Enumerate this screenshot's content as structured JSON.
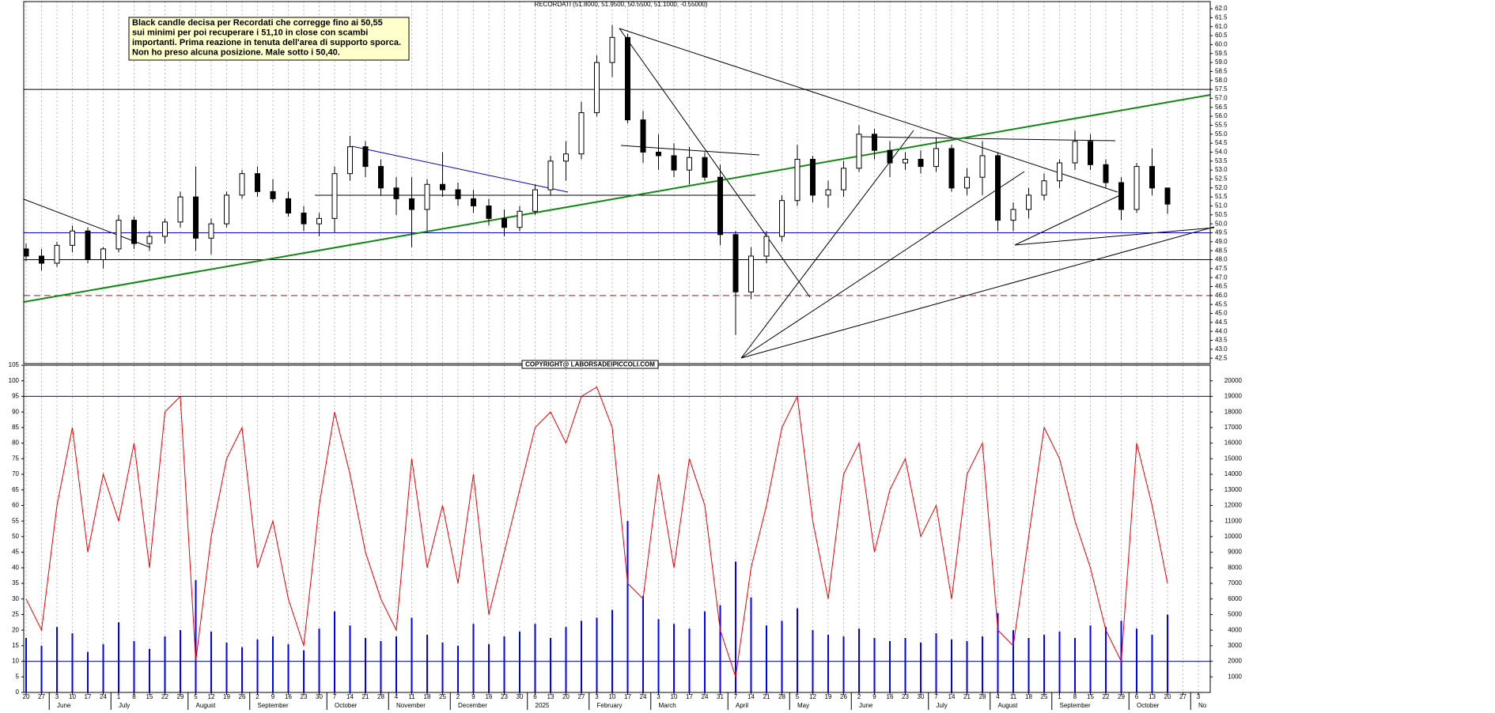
{
  "chart_data": {
    "type": "candlestick",
    "title": "RECORDATI (51.8000, 51.9500, 50.5500, 51.1000, -0.55000)",
    "annotation": [
      "Black candle decisa per Recordati che corregge fino ai 50,55",
      "sui minimi per poi recuperare i 51,10 in close con scambi",
      "importanti. Prima reazione in tenuta dell'area di supporto sporca.",
      "Non ho preso alcuna posizione. Male sotto i 50,40."
    ],
    "copyright": "COPYRIGHT@ LABORSADEIPICCOLI.COM",
    "categories": [
      "20",
      "27",
      "3",
      "10",
      "17",
      "24",
      "1",
      "8",
      "15",
      "22",
      "29",
      "5",
      "12",
      "19",
      "26",
      "2",
      "9",
      "16",
      "23",
      "30",
      "7",
      "14",
      "21",
      "28",
      "4",
      "11",
      "18",
      "25",
      "2",
      "9",
      "16",
      "23",
      "30",
      "6",
      "13",
      "20",
      "27",
      "3",
      "10",
      "17",
      "24",
      "3",
      "10",
      "17",
      "24",
      "31",
      "7",
      "14",
      "21",
      "28",
      "5",
      "12",
      "19",
      "26",
      "2",
      "9",
      "16",
      "23",
      "30",
      "7",
      "14",
      "21",
      "28",
      "4",
      "11",
      "18",
      "25",
      "1",
      "8",
      "15",
      "22",
      "29",
      "6",
      "13",
      "20",
      "27",
      "3"
    ],
    "month_labels": [
      null,
      null,
      "June",
      null,
      null,
      null,
      "July",
      null,
      null,
      null,
      null,
      "August",
      null,
      null,
      null,
      "September",
      null,
      null,
      null,
      null,
      "October",
      null,
      null,
      null,
      "November",
      null,
      null,
      null,
      "December",
      null,
      null,
      null,
      null,
      "2025",
      null,
      null,
      null,
      "February",
      null,
      null,
      null,
      "March",
      null,
      null,
      null,
      null,
      "April",
      null,
      null,
      null,
      "May",
      null,
      null,
      null,
      "June",
      null,
      null,
      null,
      null,
      "July",
      null,
      null,
      null,
      "August",
      null,
      null,
      null,
      "September",
      null,
      null,
      null,
      null,
      "October",
      null,
      null,
      null,
      "No"
    ],
    "open": [
      48.6,
      48.2,
      47.8,
      48.8,
      49.6,
      48.0,
      48.6,
      50.2,
      48.9,
      49.3,
      50.1,
      51.5,
      49.2,
      50.0,
      51.6,
      52.8,
      51.8,
      51.4,
      50.6,
      50.0,
      50.3,
      52.8,
      54.3,
      53.2,
      52.0,
      51.4,
      50.8,
      52.2,
      51.9,
      51.4,
      51.0,
      50.3,
      49.8,
      50.7,
      51.9,
      53.5,
      53.9,
      56.2,
      59.0,
      60.4,
      55.8,
      54.0,
      53.8,
      53.0,
      53.7,
      52.6,
      49.4,
      46.2,
      48.2,
      49.3,
      51.3,
      53.6,
      51.6,
      51.9,
      53.1,
      55.0,
      54.1,
      53.4,
      53.6,
      53.2,
      54.2,
      52.0,
      52.6,
      53.8,
      50.2,
      50.8,
      51.6,
      52.4,
      53.4,
      54.6,
      53.3,
      52.3,
      50.8,
      53.2,
      52.0,
      null,
      null
    ],
    "high": [
      48.9,
      48.6,
      49.0,
      49.9,
      49.8,
      48.7,
      50.5,
      50.4,
      49.6,
      50.3,
      51.8,
      53.2,
      50.3,
      51.8,
      53.0,
      53.2,
      52.5,
      51.8,
      51.0,
      50.6,
      53.2,
      54.9,
      54.6,
      53.6,
      52.6,
      52.6,
      52.5,
      54.0,
      52.3,
      51.9,
      51.4,
      50.8,
      51.0,
      52.2,
      53.8,
      54.6,
      56.8,
      59.4,
      61.1,
      60.6,
      56.3,
      55.0,
      54.5,
      54.3,
      54.0,
      53.3,
      49.6,
      48.7,
      49.6,
      51.6,
      54.4,
      53.8,
      52.4,
      53.5,
      55.5,
      55.3,
      54.6,
      54.0,
      54.1,
      54.8,
      54.4,
      53.1,
      54.6,
      54.0,
      51.2,
      52.0,
      52.8,
      53.6,
      55.2,
      55.0,
      53.6,
      52.6,
      53.4,
      54.2,
      51.95,
      null,
      null
    ],
    "low": [
      47.9,
      47.4,
      47.6,
      48.4,
      47.8,
      47.5,
      48.4,
      48.6,
      48.5,
      48.9,
      49.8,
      48.5,
      48.3,
      49.8,
      51.4,
      51.5,
      51.2,
      50.4,
      49.6,
      49.3,
      49.5,
      52.4,
      52.6,
      51.6,
      50.5,
      48.7,
      49.6,
      51.5,
      51.0,
      50.6,
      49.9,
      49.3,
      49.6,
      50.5,
      51.6,
      52.4,
      53.6,
      56.0,
      58.2,
      55.6,
      53.4,
      53.0,
      52.6,
      52.2,
      52.4,
      48.8,
      43.8,
      45.8,
      47.8,
      49.0,
      51.0,
      51.2,
      50.9,
      51.5,
      52.9,
      53.6,
      52.6,
      53.0,
      52.8,
      52.9,
      51.8,
      51.6,
      51.6,
      49.6,
      49.6,
      50.3,
      51.3,
      52.0,
      53.0,
      53.0,
      52.0,
      50.2,
      50.6,
      51.6,
      50.55,
      null,
      null
    ],
    "close": [
      48.2,
      47.8,
      48.8,
      49.6,
      48.0,
      48.6,
      50.2,
      48.9,
      49.3,
      50.1,
      51.5,
      49.2,
      50.0,
      51.6,
      52.8,
      51.8,
      51.4,
      50.6,
      50.0,
      50.3,
      52.8,
      54.3,
      53.2,
      52.0,
      51.4,
      50.8,
      52.2,
      51.9,
      51.4,
      51.0,
      50.3,
      49.8,
      50.7,
      51.9,
      53.5,
      53.9,
      56.2,
      59.0,
      60.4,
      55.8,
      54.0,
      53.8,
      53.0,
      53.7,
      52.6,
      49.4,
      46.2,
      48.2,
      49.3,
      51.3,
      53.6,
      51.6,
      51.9,
      53.1,
      55.0,
      54.1,
      53.4,
      53.6,
      53.2,
      54.2,
      52.0,
      52.6,
      53.8,
      50.2,
      50.8,
      51.6,
      52.4,
      53.4,
      54.6,
      53.3,
      52.3,
      50.8,
      53.2,
      52.0,
      51.1,
      null,
      null
    ],
    "color_up": "#ffffff",
    "color_down": "#000000",
    "ylim": [
      42.2,
      62.4
    ],
    "yticks": [
      {
        "value": 42.5,
        "label": "42.5"
      },
      {
        "value": 43,
        "label": "43.0"
      },
      {
        "value": 43.5,
        "label": "43.5"
      },
      {
        "value": 44,
        "label": "44.0"
      },
      {
        "value": 44.5,
        "label": "44.5"
      },
      {
        "value": 45,
        "label": "45.0"
      },
      {
        "value": 45.5,
        "label": "45.5"
      },
      {
        "value": 46,
        "label": "46.0"
      },
      {
        "value": 46.5,
        "label": "46.5"
      },
      {
        "value": 47,
        "label": "47.0"
      },
      {
        "value": 47.5,
        "label": "47.5"
      },
      {
        "value": 48,
        "label": "48.0"
      },
      {
        "value": 48.5,
        "label": "48.5"
      },
      {
        "value": 49,
        "label": "49.0"
      },
      {
        "value": 49.5,
        "label": "49.5"
      },
      {
        "value": 50,
        "label": "50.0"
      },
      {
        "value": 50.5,
        "label": "50.5"
      },
      {
        "value": 51,
        "label": "51.0"
      },
      {
        "value": 51.5,
        "label": "51.5"
      },
      {
        "value": 52,
        "label": "52.0"
      },
      {
        "value": 52.5,
        "label": "52.5"
      },
      {
        "value": 53,
        "label": "53.0"
      },
      {
        "value": 53.5,
        "label": "53.5"
      },
      {
        "value": 54,
        "label": "54.0"
      },
      {
        "value": 54.5,
        "label": "54.5"
      },
      {
        "value": 55,
        "label": "55.0"
      },
      {
        "value": 55.5,
        "label": "55.5"
      },
      {
        "value": 56,
        "label": "56.0"
      },
      {
        "value": 56.5,
        "label": "56.5"
      },
      {
        "value": 57,
        "label": "57.0"
      },
      {
        "value": 57.5,
        "label": "57.5"
      },
      {
        "value": 58,
        "label": "58.0"
      },
      {
        "value": 58.5,
        "label": "58.5"
      },
      {
        "value": 59,
        "label": "59.0"
      },
      {
        "value": 59.5,
        "label": "59.5"
      },
      {
        "value": 60,
        "label": "60.0"
      },
      {
        "value": 60.5,
        "label": "60.5"
      },
      {
        "value": 61,
        "label": "61.0"
      },
      {
        "value": 61.5,
        "label": "61.5"
      },
      {
        "value": 62,
        "label": "62.0"
      }
    ],
    "levels": [
      {
        "value": 57.5,
        "color": "#000000",
        "dashed": false
      },
      {
        "value": 49.5,
        "color": "#0000cc",
        "dashed": false
      },
      {
        "value": 48,
        "color": "#000000",
        "dashed": false
      },
      {
        "value": 46,
        "color": "#dd0000",
        "dashed": true
      }
    ],
    "grid": true,
    "lower": {
      "type": "line",
      "ylim": [
        0,
        105
      ],
      "yticks": [
        0,
        5,
        10,
        15,
        20,
        25,
        30,
        35,
        40,
        45,
        50,
        55,
        60,
        65,
        70,
        75,
        80,
        85,
        90,
        95,
        100,
        105
      ],
      "y2lim": [
        0,
        21000
      ],
      "y2ticks": [
        1000,
        2000,
        3000,
        4000,
        5000,
        6000,
        7000,
        8000,
        9000,
        10000,
        11000,
        12000,
        13000,
        14000,
        15000,
        16000,
        17000,
        18000,
        19000,
        20000
      ],
      "levels": [
        95,
        10
      ],
      "level_color": "#0000cc",
      "series": [
        {
          "type": "bar",
          "axis": "y2",
          "color": "#0000ff",
          "values": [
            3500,
            3000,
            4200,
            3800,
            2600,
            3100,
            4500,
            3300,
            2800,
            3600,
            4000,
            7200,
            3900,
            3200,
            2900,
            3400,
            3600,
            3100,
            2700,
            4100,
            5200,
            4300,
            3500,
            3300,
            3600,
            4800,
            3700,
            3200,
            3000,
            4400,
            3100,
            3600,
            3900,
            4400,
            3500,
            4200,
            4600,
            4800,
            5300,
            11000,
            6200,
            4700,
            4400,
            4100,
            5200,
            5600,
            8400,
            6100,
            4300,
            4600,
            5400,
            4000,
            3700,
            3600,
            4100,
            3500,
            3300,
            3500,
            3200,
            3800,
            3400,
            3300,
            3600,
            5100,
            4000,
            3500,
            3700,
            3900,
            3500,
            4300,
            4200,
            4600,
            4100,
            3700,
            5000,
            null,
            null
          ]
        },
        {
          "type": "line",
          "color": "#ee0000",
          "values": [
            30,
            20,
            60,
            85,
            45,
            70,
            55,
            80,
            40,
            90,
            95,
            10,
            50,
            75,
            85,
            40,
            55,
            30,
            15,
            60,
            90,
            70,
            45,
            30,
            20,
            75,
            40,
            60,
            35,
            70,
            25,
            45,
            65,
            85,
            90,
            80,
            95,
            98,
            85,
            35,
            30,
            70,
            40,
            75,
            60,
            20,
            5,
            40,
            60,
            85,
            95,
            55,
            30,
            70,
            80,
            45,
            65,
            75,
            50,
            60,
            30,
            70,
            80,
            20,
            15,
            50,
            85,
            75,
            55,
            40,
            20,
            10,
            80,
            60,
            35,
            null,
            null
          ]
        }
      ]
    }
  }
}
